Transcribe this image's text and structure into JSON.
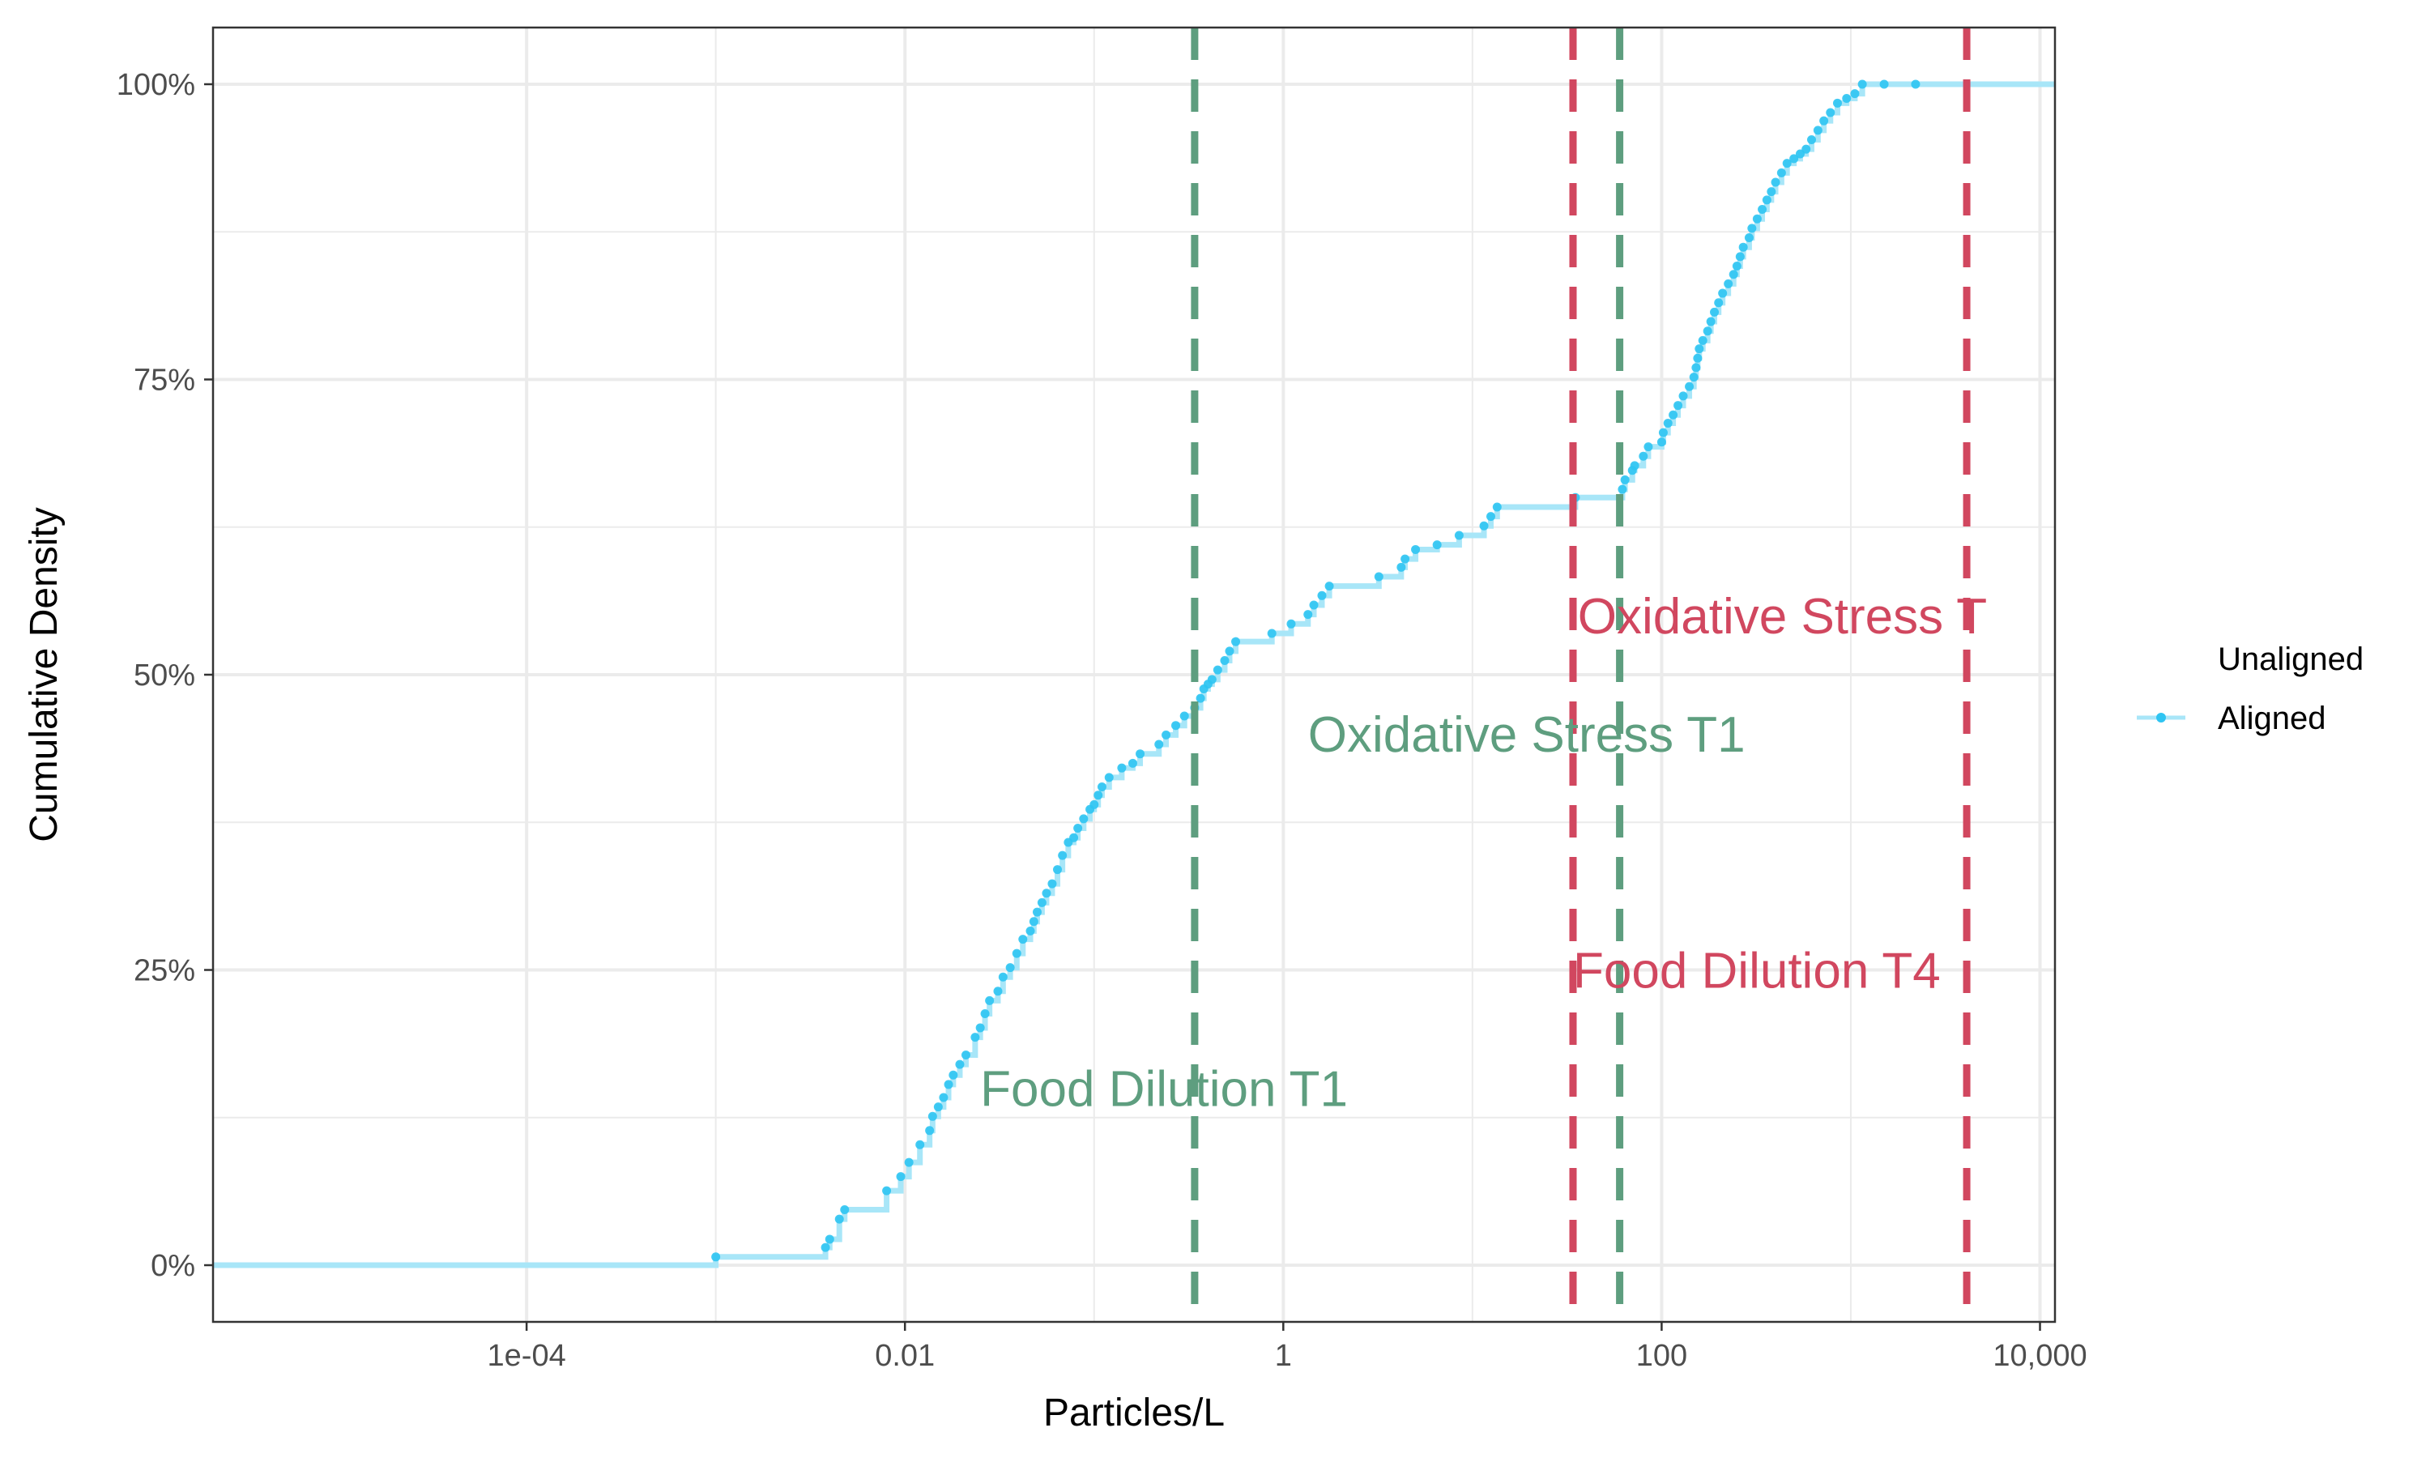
{
  "chart_data": {
    "type": "line",
    "title": "",
    "xlabel": "Particles/L",
    "ylabel": "Cumulative Density",
    "x_scale": "log10",
    "xlim": [
      2.2e-06,
      12000
    ],
    "ylim": [
      -0.048,
      1.048
    ],
    "x_ticks": [
      0.0001,
      0.01,
      1,
      100,
      10000
    ],
    "x_tick_labels": [
      "1e-04",
      "0.01",
      "1",
      "100",
      "10,000"
    ],
    "y_ticks": [
      0,
      0.25,
      0.5,
      0.75,
      1
    ],
    "y_tick_labels": [
      "0%",
      "25%",
      "50%",
      "75%",
      "100%"
    ],
    "grid": true,
    "legend": {
      "position": "right",
      "title": "Unaligned",
      "entries": [
        {
          "label": "Aligned",
          "color": "#2EC4F2"
        }
      ]
    },
    "series": [
      {
        "name": "Aligned",
        "color": "#2EC4F2",
        "step_color": "#A8E6F8",
        "x": [
          0.001,
          0.0038,
          0.004,
          0.0045,
          0.0048,
          0.008,
          0.0095,
          0.0105,
          0.012,
          0.0135,
          0.014,
          0.015,
          0.016,
          0.017,
          0.018,
          0.0195,
          0.021,
          0.0235,
          0.025,
          0.0265,
          0.028,
          0.031,
          0.033,
          0.036,
          0.039,
          0.042,
          0.046,
          0.048,
          0.05,
          0.053,
          0.056,
          0.06,
          0.064,
          0.068,
          0.073,
          0.078,
          0.082,
          0.088,
          0.095,
          0.1,
          0.105,
          0.11,
          0.12,
          0.14,
          0.16,
          0.175,
          0.22,
          0.24,
          0.27,
          0.3,
          0.34,
          0.365,
          0.38,
          0.4,
          0.42,
          0.45,
          0.49,
          0.52,
          0.56,
          0.87,
          1.1,
          1.35,
          1.45,
          1.6,
          1.75,
          3.2,
          4.2,
          4.4,
          5.0,
          6.5,
          8.5,
          11.5,
          12.5,
          13.5,
          35,
          62,
          64,
          70,
          72,
          80,
          85,
          100,
          102,
          108,
          115,
          122,
          130,
          140,
          148,
          152,
          155,
          158,
          165,
          175,
          182,
          190,
          200,
          210,
          225,
          240,
          250,
          260,
          270,
          290,
          300,
          320,
          340,
          360,
          380,
          400,
          430,
          460,
          500,
          540,
          580,
          620,
          670,
          720,
          780,
          850,
          950,
          1050,
          1150,
          1500,
          2200
        ],
        "y": [
          0.007,
          0.015,
          0.022,
          0.039,
          0.047,
          0.063,
          0.075,
          0.087,
          0.102,
          0.114,
          0.126,
          0.134,
          0.142,
          0.153,
          0.161,
          0.17,
          0.178,
          0.193,
          0.201,
          0.213,
          0.224,
          0.232,
          0.244,
          0.252,
          0.264,
          0.276,
          0.283,
          0.291,
          0.299,
          0.307,
          0.315,
          0.323,
          0.335,
          0.347,
          0.358,
          0.362,
          0.37,
          0.378,
          0.386,
          0.39,
          0.398,
          0.405,
          0.413,
          0.421,
          0.425,
          0.433,
          0.441,
          0.449,
          0.457,
          0.465,
          0.472,
          0.48,
          0.488,
          0.492,
          0.496,
          0.504,
          0.512,
          0.52,
          0.528,
          0.535,
          0.543,
          0.551,
          0.559,
          0.567,
          0.575,
          0.583,
          0.591,
          0.598,
          0.606,
          0.61,
          0.618,
          0.626,
          0.634,
          0.642,
          0.65,
          0.657,
          0.665,
          0.673,
          0.677,
          0.685,
          0.693,
          0.697,
          0.705,
          0.713,
          0.72,
          0.728,
          0.736,
          0.744,
          0.752,
          0.76,
          0.768,
          0.776,
          0.783,
          0.791,
          0.799,
          0.807,
          0.815,
          0.823,
          0.831,
          0.839,
          0.846,
          0.854,
          0.862,
          0.87,
          0.878,
          0.886,
          0.894,
          0.902,
          0.909,
          0.917,
          0.925,
          0.933,
          0.937,
          0.941,
          0.945,
          0.953,
          0.961,
          0.969,
          0.976,
          0.984,
          0.988,
          0.992,
          1.0,
          1.0,
          1.0
        ]
      }
    ],
    "reference_lines": [
      {
        "x": 0.34,
        "color": "#5E9E7F",
        "style": "dashed",
        "label": "Food Dilution T1",
        "label_x": 0.025,
        "label_y": 0.15
      },
      {
        "x": 34,
        "color": "#D1475F",
        "style": "dashed",
        "label": "Food Dilution T4",
        "label_x": 34,
        "label_y": 0.25
      },
      {
        "x": 60,
        "color": "#5E9E7F",
        "style": "dashed",
        "label": "Oxidative Stress T1",
        "label_x": 1.35,
        "label_y": 0.45
      },
      {
        "x": 4100,
        "color": "#D1475F",
        "style": "dashed",
        "label": "Oxidative Stress T",
        "label_x": 36,
        "label_y": 0.55
      }
    ]
  }
}
